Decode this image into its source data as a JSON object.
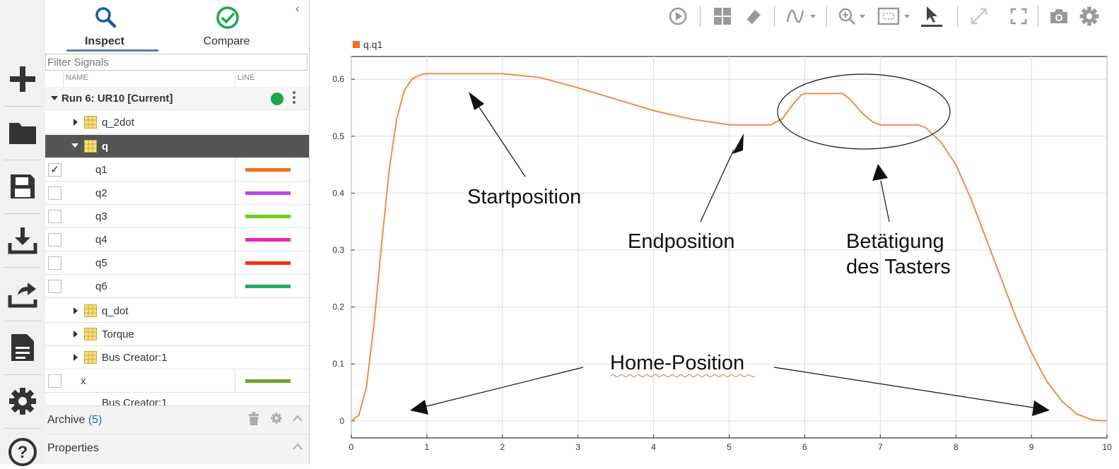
{
  "rail": {
    "items": [
      {
        "name": "plus-icon"
      },
      {
        "name": "folder-icon"
      },
      {
        "name": "save-icon"
      },
      {
        "name": "download-icon"
      },
      {
        "name": "share-icon"
      },
      {
        "name": "document-icon"
      },
      {
        "name": "gear-icon"
      },
      {
        "name": "help-icon"
      }
    ]
  },
  "tabs": {
    "inspect": "Inspect",
    "compare": "Compare"
  },
  "filter": {
    "placeholder": "Filter Signals"
  },
  "columns": {
    "name": "NAME",
    "line": "LINE"
  },
  "run": {
    "label": "Run 6: UR10 [Current]",
    "status_color": "#1aa64b"
  },
  "tree": {
    "q_2dot": "q_2dot",
    "q": "q",
    "signals": [
      {
        "label": "q1",
        "checked": true,
        "color": "#f46d1f",
        "check_glyph": "✓"
      },
      {
        "label": "q2",
        "checked": false,
        "color": "#b146f0"
      },
      {
        "label": "q3",
        "checked": false,
        "color": "#6bcf1f"
      },
      {
        "label": "q4",
        "checked": false,
        "color": "#ee27b4"
      },
      {
        "label": "q5",
        "checked": false,
        "color": "#f4301a"
      },
      {
        "label": "q6",
        "checked": false,
        "color": "#1faa64"
      }
    ],
    "q_dot": "q_dot",
    "torque": "Torque",
    "bus": "Bus Creator:1",
    "x": {
      "label": "x",
      "color": "#6aa52b"
    },
    "partial": "Bus Creator:1"
  },
  "archive": {
    "label": "Archive",
    "count": "(5)"
  },
  "properties": {
    "label": "Properties"
  },
  "chart_data": {
    "type": "line",
    "legend": "q.q1",
    "series": [
      {
        "name": "q.q1",
        "color": "#f58a45",
        "x": [
          0,
          0.1,
          0.2,
          0.3,
          0.4,
          0.5,
          0.6,
          0.7,
          0.8,
          0.9,
          0.95,
          1.0,
          1.5,
          2.0,
          2.5,
          3.0,
          3.5,
          4.0,
          4.5,
          5.0,
          5.3,
          5.55,
          5.7,
          5.85,
          5.95,
          6.0,
          6.3,
          6.5,
          6.6,
          6.75,
          6.9,
          7.0,
          7.3,
          7.5,
          7.6,
          7.8,
          8.0,
          8.2,
          8.4,
          8.6,
          8.8,
          9.0,
          9.2,
          9.4,
          9.6,
          9.8,
          9.9,
          10.0
        ],
        "y": [
          0,
          0.01,
          0.06,
          0.17,
          0.31,
          0.44,
          0.53,
          0.58,
          0.6,
          0.607,
          0.609,
          0.61,
          0.61,
          0.61,
          0.603,
          0.585,
          0.565,
          0.545,
          0.53,
          0.52,
          0.52,
          0.52,
          0.53,
          0.557,
          0.572,
          0.575,
          0.575,
          0.575,
          0.565,
          0.542,
          0.525,
          0.52,
          0.52,
          0.52,
          0.515,
          0.49,
          0.45,
          0.39,
          0.32,
          0.25,
          0.18,
          0.12,
          0.07,
          0.035,
          0.012,
          0.002,
          0.0005,
          0
        ]
      }
    ],
    "xlim": [
      0,
      10
    ],
    "ylim": [
      -0.03,
      0.64
    ],
    "xticks": [
      0,
      1,
      2,
      3,
      4,
      5,
      6,
      7,
      8,
      9,
      10
    ],
    "yticks": [
      0,
      0.1,
      0.2,
      0.3,
      0.4,
      0.5,
      0.6
    ],
    "xticklabels": [
      "0",
      "1",
      "2",
      "3",
      "4",
      "5",
      "6",
      "7",
      "8",
      "9",
      "10"
    ],
    "yticklabels": [
      "0",
      "0.1",
      "0.2",
      "0.3",
      "0.4",
      "0.5",
      "0.6"
    ],
    "grid": true,
    "annotations": {
      "start": "Startposition",
      "end": "Endposition",
      "button_line1": "Betätigung",
      "button_line2": "des Tasters",
      "home": "Home-Position"
    }
  }
}
